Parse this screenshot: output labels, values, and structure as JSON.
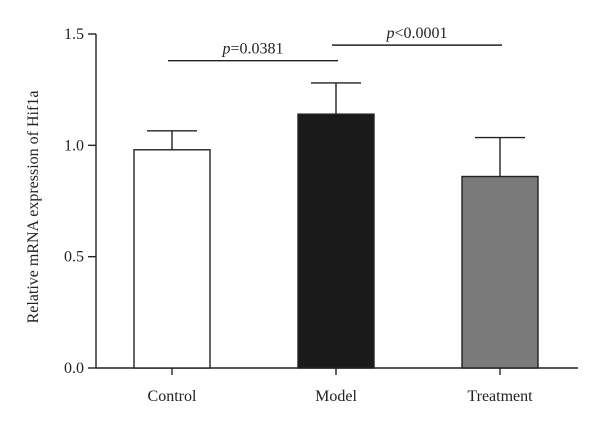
{
  "chart_data": {
    "type": "bar",
    "categories": [
      "Control",
      "Model",
      "Treatment"
    ],
    "values": [
      0.98,
      1.14,
      0.86
    ],
    "error_upper": [
      1.065,
      1.28,
      1.035
    ],
    "bar_fill": [
      "#ffffff",
      "#1a1a1a",
      "#7a7a7a"
    ],
    "ylabel": "Relative mRNA expression of Hif1a",
    "ylim": [
      0.0,
      1.5
    ],
    "yticks": [
      "0.0",
      "0.5",
      "1.0",
      "1.5"
    ],
    "yticks_values": [
      0.0,
      0.5,
      1.0,
      1.5
    ],
    "grid": false,
    "annotations": [
      {
        "from": "Control",
        "to": "Model",
        "text_italic": "p",
        "text_rest": "=0.0381",
        "y": 1.38
      },
      {
        "from": "Model",
        "to": "Treatment",
        "text_italic": "p",
        "text_rest": "<0.0001",
        "y": 1.45
      }
    ]
  }
}
